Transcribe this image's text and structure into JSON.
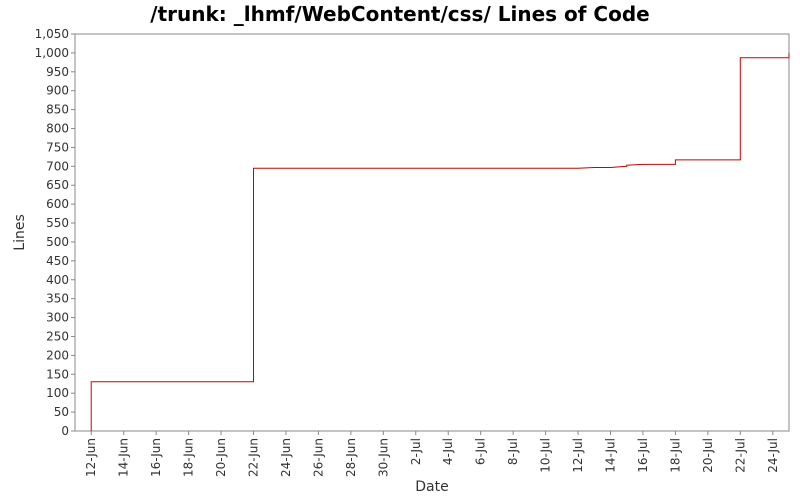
{
  "chart_data": {
    "type": "line",
    "title": "/trunk: _lhmf/WebContent/css/ Lines of Code",
    "xlabel": "Date",
    "ylabel": "Lines",
    "ylim": [
      0,
      1050
    ],
    "y_ticks": [
      0,
      50,
      100,
      150,
      200,
      250,
      300,
      350,
      400,
      450,
      500,
      550,
      600,
      650,
      700,
      750,
      800,
      850,
      900,
      950,
      1000,
      1050
    ],
    "y_tick_labels": [
      "0",
      "50",
      "100",
      "150",
      "200",
      "250",
      "300",
      "350",
      "400",
      "450",
      "500",
      "550",
      "600",
      "650",
      "700",
      "750",
      "800",
      "850",
      "900",
      "950",
      "1,000",
      "1,050"
    ],
    "x_ticks": [
      "12-Jun",
      "14-Jun",
      "16-Jun",
      "18-Jun",
      "20-Jun",
      "22-Jun",
      "24-Jun",
      "26-Jun",
      "28-Jun",
      "30-Jun",
      "2-Jul",
      "4-Jul",
      "6-Jul",
      "8-Jul",
      "10-Jul",
      "12-Jul",
      "14-Jul",
      "16-Jul",
      "18-Jul",
      "20-Jul",
      "22-Jul",
      "24-Jul"
    ],
    "xlim": [
      "11-Jun",
      "25-Jul"
    ],
    "grid": false,
    "line_color": "#cc0000",
    "series": [
      {
        "step": true,
        "points": [
          [
            "12-Jun",
            0
          ],
          [
            "12-Jun",
            130
          ],
          [
            "22-Jun",
            130
          ],
          [
            "22-Jun",
            695
          ],
          [
            "12-Jul",
            695
          ],
          [
            "13-Jul",
            697
          ],
          [
            "14-Jul",
            697
          ],
          [
            "15-Jul",
            700
          ],
          [
            "15-Jul",
            703
          ],
          [
            "16-Jul",
            705
          ],
          [
            "18-Jul",
            705
          ],
          [
            "18-Jul",
            717
          ],
          [
            "22-Jul",
            717
          ],
          [
            "22-Jul",
            987
          ],
          [
            "25-Jul",
            987
          ],
          [
            "25-Jul",
            1000
          ]
        ]
      }
    ]
  }
}
